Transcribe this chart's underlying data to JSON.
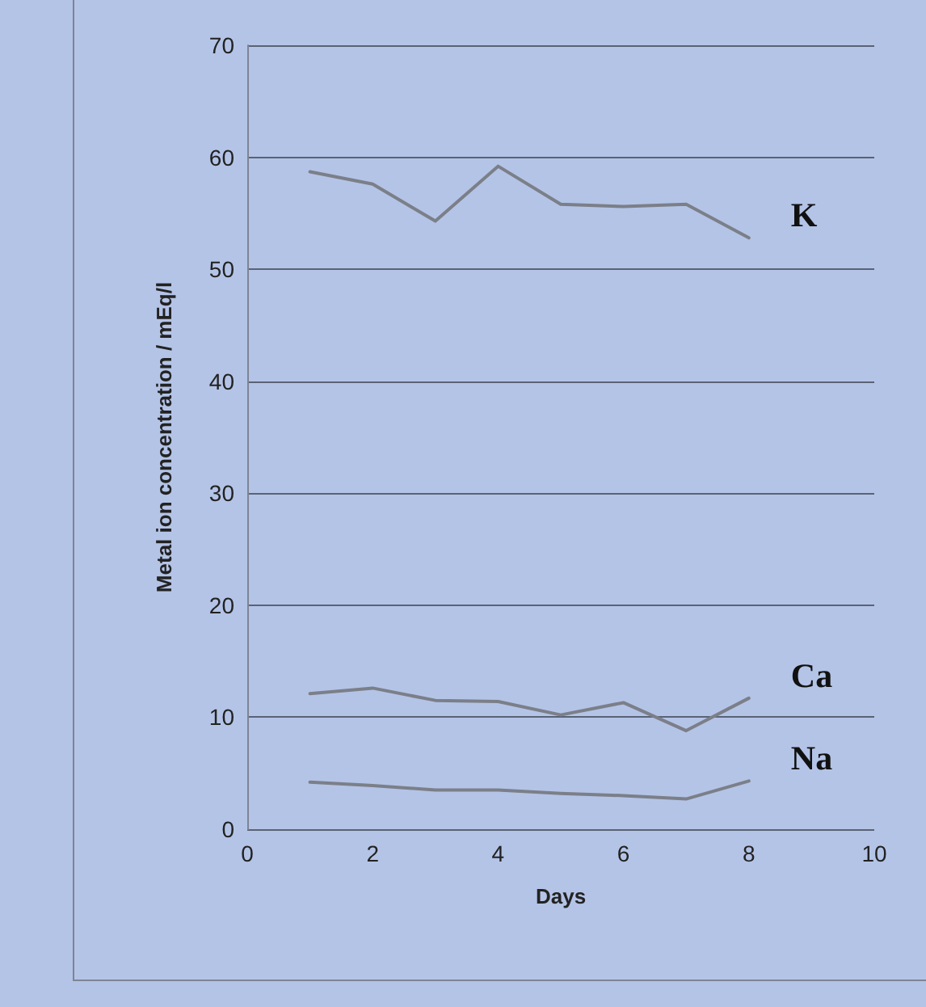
{
  "chart_data": {
    "type": "line",
    "xlabel": "Days",
    "ylabel": "Metal ion concentration / mEq/l",
    "x": [
      1,
      2,
      3,
      4,
      5,
      6,
      7,
      8
    ],
    "series": [
      {
        "name": "K",
        "color": "#7b7f88",
        "values": [
          58.7,
          57.6,
          54.3,
          59.2,
          55.8,
          55.6,
          55.8,
          52.8
        ]
      },
      {
        "name": "Ca",
        "color": "#7b7f88",
        "values": [
          12.1,
          12.6,
          11.5,
          11.4,
          10.2,
          11.3,
          8.8,
          11.7
        ]
      },
      {
        "name": "Na",
        "color": "#7b7f88",
        "values": [
          4.2,
          3.9,
          3.5,
          3.5,
          3.2,
          3.0,
          2.7,
          4.3
        ]
      }
    ],
    "xlim": [
      0,
      10
    ],
    "xticks": [
      0,
      2,
      4,
      6,
      8,
      10
    ],
    "ylim": [
      0,
      70
    ],
    "yticks": [
      0,
      10,
      20,
      30,
      40,
      50,
      60,
      70
    ],
    "grid": "y",
    "legend": false,
    "marker": "none",
    "line_style": "solid"
  }
}
